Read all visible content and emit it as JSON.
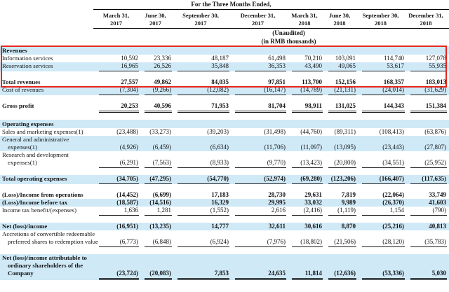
{
  "header": {
    "title": "For the Three Months Ended,",
    "columns": [
      [
        "March 31,",
        "2017"
      ],
      [
        "June 30,",
        "2017"
      ],
      [
        "September 30,",
        "2017"
      ],
      [
        "December 31,",
        "2017"
      ],
      [
        "March 31,",
        "2018"
      ],
      [
        "June 30,",
        "2018"
      ],
      [
        "September 30,",
        "2018"
      ],
      [
        "December 31,",
        "2018"
      ]
    ],
    "unaudited": "(Unaudited)",
    "units": "(in RMB thousands)"
  },
  "colors": {
    "row_highlight": "#cfe9f7",
    "box_border": "#e8251c"
  },
  "annotation": {
    "note": "red box highlighting Revenues section"
  },
  "rows": [
    {
      "kind": "section",
      "blue": true,
      "bold": true,
      "label_lines": [
        "Revenues"
      ]
    },
    {
      "kind": "data",
      "label_lines": [
        "Information services"
      ],
      "values": [
        "10,592",
        "23,336",
        "48,187",
        "61,498",
        "70,210",
        "103,091",
        "114,740",
        "127,078"
      ]
    },
    {
      "kind": "data",
      "blue": true,
      "rule": "single",
      "label_lines": [
        "Reservation services"
      ],
      "values": [
        "16,965",
        "26,526",
        "35,848",
        "36,353",
        "43,490",
        "49,065",
        "53,617",
        "55,935"
      ]
    },
    {
      "kind": "spacer"
    },
    {
      "kind": "data",
      "bold": true,
      "label_lines": [
        "Total revenues"
      ],
      "values": [
        "27,557",
        "49,862",
        "84,035",
        "97,851",
        "113,700",
        "152,156",
        "168,357",
        "183,013"
      ]
    },
    {
      "kind": "data",
      "blue": true,
      "rule": "single",
      "label_lines": [
        "Cost of revenues"
      ],
      "values": [
        "(7,304)",
        "(9,266)",
        "(12,082)",
        "(16,147)",
        "(14,789)",
        "(21,131)",
        "(24,014)",
        "(31,629)"
      ]
    },
    {
      "kind": "spacer"
    },
    {
      "kind": "data",
      "bold": true,
      "rule": "double",
      "label_lines": [
        "Gross profit"
      ],
      "values": [
        "20,253",
        "40,596",
        "71,953",
        "81,704",
        "98,911",
        "131,025",
        "144,343",
        "151,384"
      ]
    },
    {
      "kind": "spacer"
    },
    {
      "kind": "section",
      "blue": true,
      "bold": true,
      "label_lines": [
        "Operating expenses"
      ]
    },
    {
      "kind": "data",
      "label_lines": [
        "Sales and marketing expenses(1)"
      ],
      "values": [
        "(23,488)",
        "(33,273)",
        "(39,203)",
        "(31,498)",
        "(44,760)",
        "(89,311)",
        "(108,413)",
        "(63,876)"
      ]
    },
    {
      "kind": "data",
      "blue": true,
      "label_lines": [
        "General and administrative",
        "expenses(1)"
      ],
      "values": [
        "(4,926)",
        "(6,459)",
        "(6,634)",
        "(11,706)",
        "(11,097)",
        "(13,095)",
        "(23,443)",
        "(27,807)"
      ]
    },
    {
      "kind": "data",
      "rule": "single",
      "label_lines": [
        "Research and development",
        "expenses(1)"
      ],
      "values": [
        "(6,291)",
        "(7,563)",
        "(8,933)",
        "(9,770)",
        "(13,423)",
        "(20,800)",
        "(34,551)",
        "(25,952)"
      ]
    },
    {
      "kind": "spacer"
    },
    {
      "kind": "data",
      "blue": true,
      "bold": true,
      "rule": "single",
      "label_lines": [
        "Total operating expenses"
      ],
      "values": [
        "(34,705)",
        "(47,295)",
        "(54,770)",
        "(52,974)",
        "(69,280)",
        "(123,206)",
        "(166,407)",
        "(117,635)"
      ]
    },
    {
      "kind": "spacer"
    },
    {
      "kind": "data",
      "bold": true,
      "label_lines": [
        "(Loss)/Income from operations"
      ],
      "values": [
        "(14,452)",
        "(6,699)",
        "17,183",
        "28,730",
        "29,631",
        "7,819",
        "(22,064)",
        "33,749"
      ]
    },
    {
      "kind": "data",
      "blue": true,
      "bold": true,
      "label_lines": [
        "(Loss)/Income before tax"
      ],
      "values": [
        "(18,587)",
        "(14,516)",
        "16,329",
        "29,995",
        "33,032",
        "9,989",
        "(26,370)",
        "41,603"
      ]
    },
    {
      "kind": "data",
      "rule": "single",
      "label_lines": [
        "Income tax benefit/(expenses)"
      ],
      "values": [
        "1,636",
        "1,281",
        "(1,552)",
        "2,616",
        "(2,416)",
        "(1,119)",
        "1,154",
        "(790)"
      ]
    },
    {
      "kind": "spacer"
    },
    {
      "kind": "data",
      "blue": true,
      "bold": true,
      "label_lines": [
        "Net (loss)/income"
      ],
      "values": [
        "(16,951)",
        "(13,235)",
        "14,777",
        "32,611",
        "30,616",
        "8,870",
        "(25,216)",
        "40,813"
      ]
    },
    {
      "kind": "data",
      "rule": "single",
      "label_lines": [
        "Accretions of convertible redeemable",
        "preferred shares to redemption value"
      ],
      "values": [
        "(6,773)",
        "(6,848)",
        "(6,924)",
        "(7,976)",
        "(18,802)",
        "(21,506)",
        "(28,120)",
        "(35,783)"
      ]
    },
    {
      "kind": "spacer"
    },
    {
      "kind": "data",
      "blue": true,
      "bold": true,
      "rule": "double",
      "label_lines": [
        "Net (loss)/income attributable to",
        "ordinary shareholders of the",
        "Company"
      ],
      "values": [
        "(23,724)",
        "(20,083)",
        "7,853",
        "24,635",
        "11,814",
        "(12,636)",
        "(53,336)",
        "5,030"
      ]
    }
  ]
}
